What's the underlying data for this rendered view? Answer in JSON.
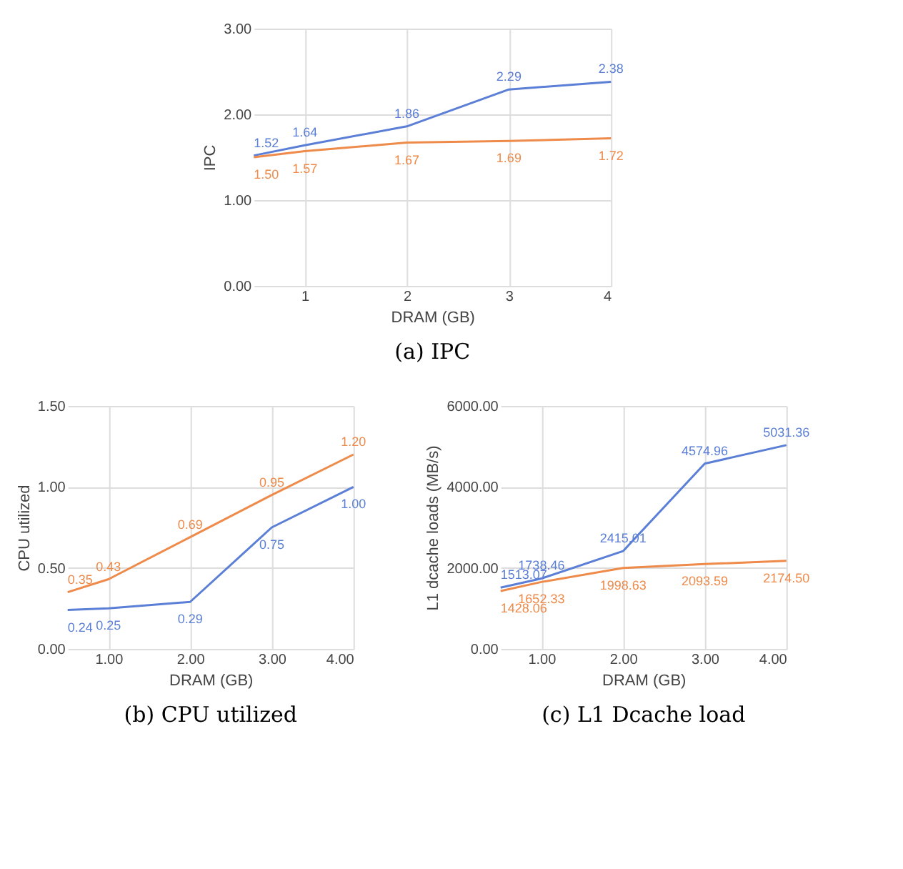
{
  "chart_data": [
    {
      "type": "line",
      "title": "(a) IPC",
      "xlabel": "DRAM (GB)",
      "ylabel": "IPC",
      "x": [
        0.5,
        1,
        2,
        3,
        4
      ],
      "xlim": [
        0.5,
        4
      ],
      "xticks": [
        1,
        2,
        3,
        4
      ],
      "ylim": [
        0,
        3
      ],
      "yticks": [
        {
          "value": 0,
          "label": "0.00"
        },
        {
          "value": 1,
          "label": "1.00"
        },
        {
          "value": 2,
          "label": "2.00"
        },
        {
          "value": 3,
          "label": "3.00"
        }
      ],
      "grid": true,
      "series": [
        {
          "color": "#5b7fd6",
          "values": [
            1.52,
            1.64,
            1.86,
            2.29,
            2.38
          ],
          "value_labels": [
            "1.52",
            "1.64",
            "1.86",
            "2.29",
            "2.38"
          ]
        },
        {
          "color": "#ee8a4a",
          "values": [
            1.5,
            1.57,
            1.67,
            1.69,
            1.72
          ],
          "value_labels": [
            "1.50",
            "1.57",
            "1.67",
            "1.69",
            "1.72"
          ]
        }
      ]
    },
    {
      "type": "line",
      "title": "(b) CPU utilized",
      "xlabel": "DRAM (GB)",
      "ylabel": "CPU utilized",
      "x": [
        0.5,
        1,
        2,
        3,
        4
      ],
      "xlim": [
        0.5,
        4
      ],
      "xticks": [
        {
          "value": 1,
          "label": "1.00"
        },
        {
          "value": 2,
          "label": "2.00"
        },
        {
          "value": 3,
          "label": "3.00"
        },
        {
          "value": 4,
          "label": "4.00"
        }
      ],
      "ylim": [
        0,
        1.5
      ],
      "yticks": [
        {
          "value": 0,
          "label": "0.00"
        },
        {
          "value": 0.5,
          "label": "0.50"
        },
        {
          "value": 1,
          "label": "1.00"
        },
        {
          "value": 1.5,
          "label": "1.50"
        }
      ],
      "grid": true,
      "series": [
        {
          "color": "#5b7fd6",
          "values": [
            0.24,
            0.25,
            0.29,
            0.75,
            1.0
          ],
          "value_labels": [
            "0.24",
            "0.25",
            "0.29",
            "0.75",
            "1.00"
          ]
        },
        {
          "color": "#ee8a4a",
          "values": [
            0.35,
            0.43,
            0.69,
            0.95,
            1.2
          ],
          "value_labels": [
            "0.35",
            "0.43",
            "0.69",
            "0.95",
            "1.20"
          ]
        }
      ]
    },
    {
      "type": "line",
      "title": "(c) L1 Dcache load",
      "xlabel": "DRAM (GB)",
      "ylabel": "L1 dcache loads (MB/s)",
      "x": [
        0.5,
        1,
        2,
        3,
        4
      ],
      "xlim": [
        0.5,
        4
      ],
      "xticks": [
        {
          "value": 1,
          "label": "1.00"
        },
        {
          "value": 2,
          "label": "2.00"
        },
        {
          "value": 3,
          "label": "3.00"
        },
        {
          "value": 4,
          "label": "4.00"
        }
      ],
      "ylim": [
        0,
        6000
      ],
      "yticks": [
        {
          "value": 0,
          "label": "0.00"
        },
        {
          "value": 2000,
          "label": "2000.00"
        },
        {
          "value": 4000,
          "label": "4000.00"
        },
        {
          "value": 6000,
          "label": "6000.00"
        }
      ],
      "grid": true,
      "series": [
        {
          "color": "#5b7fd6",
          "values": [
            1513.07,
            1738.46,
            2415.01,
            4574.96,
            5031.36
          ],
          "value_labels": [
            "1513.07",
            "1738.46",
            "2415.01",
            "4574.96",
            "5031.36"
          ]
        },
        {
          "color": "#ee8a4a",
          "values": [
            1428.06,
            1652.33,
            1998.63,
            2093.59,
            2174.5
          ],
          "value_labels": [
            "1428.06",
            "1652.33",
            "1998.63",
            "2093.59",
            "2174.50"
          ]
        }
      ]
    }
  ]
}
